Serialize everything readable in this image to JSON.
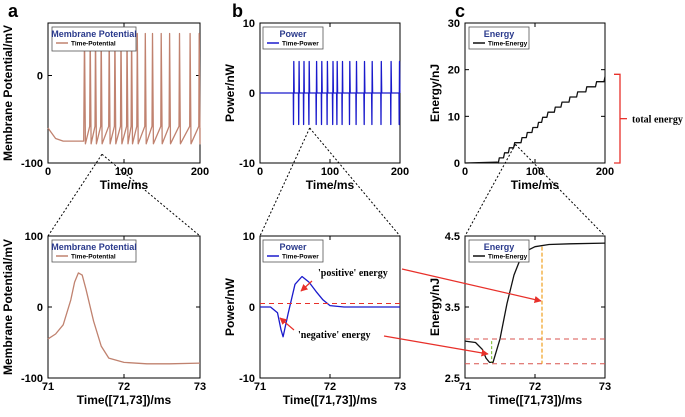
{
  "panels": [
    {
      "letter": "a"
    },
    {
      "letter": "b"
    },
    {
      "letter": "c"
    }
  ],
  "annotations": {
    "total_energy": "total energy",
    "positive_energy": "'positive' energy",
    "negative_energy": "'negative' energy"
  },
  "colors": {
    "potential": "#c0826f",
    "power": "#1a1acc",
    "energy": "#111111",
    "annotation_red": "#e8302a",
    "guide_orange": "#f0a020",
    "guide_green": "#8bc34a",
    "legend_title": "#2a3a8c"
  },
  "chart_data": [
    {
      "id": "a-top",
      "type": "line",
      "title": "Membrane Potential",
      "legend": [
        "Time-Potential"
      ],
      "xlabel": "Time/ms",
      "ylabel": "Membrane Potential/mV",
      "xlim": [
        0,
        200
      ],
      "ylim": [
        -100,
        60
      ],
      "xticks": [
        0,
        100,
        200
      ],
      "yticks": [
        -100,
        0
      ],
      "spike_times_ms": [
        48,
        55.5,
        62.5,
        70,
        80.5,
        88,
        96,
        104,
        110,
        117.5,
        128,
        137.5,
        149,
        160,
        173,
        187,
        199
      ],
      "spike_peak_mV": 48,
      "rest_mV": -75,
      "initial_mV": -60
    },
    {
      "id": "b-top",
      "type": "line",
      "title": "Power",
      "legend": [
        "Time-Power"
      ],
      "xlabel": "Time/ms",
      "ylabel": "Power/nW",
      "xlim": [
        0,
        200
      ],
      "ylim": [
        -10,
        10
      ],
      "xticks": [
        0,
        100,
        200
      ],
      "yticks": [
        -10,
        0,
        10
      ],
      "spike_times_ms": [
        48,
        55.5,
        62.5,
        70,
        80.5,
        88,
        96,
        104,
        110,
        117.5,
        128,
        137.5,
        149,
        160,
        173,
        187,
        199
      ],
      "peak_nW": 4.5,
      "trough_nW": -4.5
    },
    {
      "id": "c-top",
      "type": "line",
      "title": "Energy",
      "legend": [
        "Time-Energy"
      ],
      "xlabel": "Time/ms",
      "ylabel": "Energy/nJ",
      "xlim": [
        0,
        200
      ],
      "ylim": [
        0,
        30
      ],
      "xticks": [
        0,
        100,
        200
      ],
      "yticks": [
        0,
        10,
        20,
        30
      ],
      "spike_times_ms": [
        48,
        55.5,
        62.5,
        70,
        80.5,
        88,
        96,
        104,
        110,
        117.5,
        128,
        137.5,
        149,
        160,
        173,
        187,
        199
      ],
      "final_nJ": 18.5
    },
    {
      "id": "a-bottom",
      "type": "line",
      "title": "Membrane Potential",
      "legend": [
        "Time-Potential"
      ],
      "xlabel": "Time([71,73])/ms",
      "ylabel": "Membrane Potential/mV",
      "xlim": [
        71,
        73
      ],
      "ylim": [
        -100,
        100
      ],
      "xticks": [
        71,
        72,
        73
      ],
      "yticks": [
        -100,
        0,
        100
      ],
      "x": [
        71,
        71.1,
        71.2,
        71.3,
        71.35,
        71.4,
        71.45,
        71.5,
        71.6,
        71.7,
        71.8,
        72,
        72.3,
        72.6,
        73
      ],
      "y": [
        -45,
        -38,
        -25,
        10,
        35,
        48,
        45,
        25,
        -20,
        -55,
        -72,
        -78,
        -80,
        -80,
        -79
      ]
    },
    {
      "id": "b-bottom",
      "type": "line",
      "title": "Power",
      "legend": [
        "Time-Power"
      ],
      "xlabel": "Time([71,73])/ms",
      "ylabel": "Power/nW",
      "xlim": [
        71,
        73
      ],
      "ylim": [
        -10,
        10
      ],
      "xticks": [
        71,
        72,
        73
      ],
      "yticks": [
        -10,
        0,
        10
      ],
      "baseline_nW": 0.5,
      "x": [
        71,
        71.15,
        71.25,
        71.3,
        71.33,
        71.4,
        71.5,
        71.6,
        71.7,
        71.8,
        71.9,
        72,
        72.2,
        72.5,
        73
      ],
      "y": [
        0,
        0,
        -0.8,
        -3.2,
        -4.2,
        -1,
        3.2,
        4.3,
        3.5,
        2.2,
        1,
        0.2,
        0,
        0,
        0
      ]
    },
    {
      "id": "c-bottom",
      "type": "line",
      "title": "Energy",
      "legend": [
        "Time-Energy"
      ],
      "xlabel": "Time([71,73])/ms",
      "ylabel": "Energy/nJ",
      "xlim": [
        71,
        73
      ],
      "ylim": [
        2.5,
        4.5
      ],
      "xticks": [
        71,
        72,
        73
      ],
      "yticks": [
        2.5,
        3.5,
        4.5
      ],
      "ref_lines_nJ": [
        3.05,
        2.7
      ],
      "guide_x_ms": [
        71.38,
        72.1
      ],
      "x": [
        71,
        71.15,
        71.25,
        71.3,
        71.35,
        71.4,
        71.5,
        71.6,
        71.7,
        71.8,
        71.9,
        72,
        72.2,
        72.5,
        73
      ],
      "y": [
        3.02,
        3,
        2.9,
        2.78,
        2.72,
        2.72,
        3.05,
        3.55,
        3.95,
        4.2,
        4.3,
        4.35,
        4.38,
        4.39,
        4.4
      ]
    }
  ]
}
